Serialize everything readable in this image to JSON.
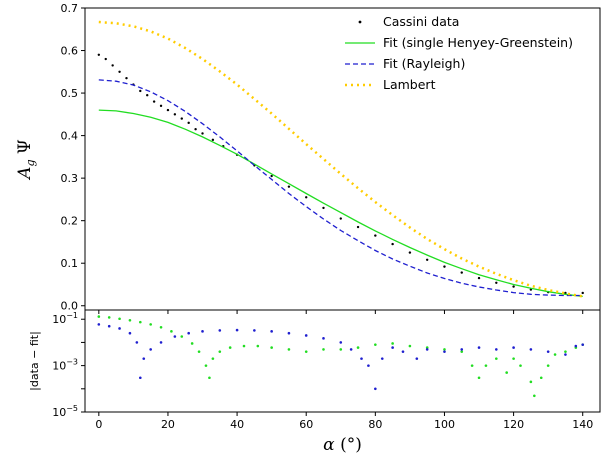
{
  "chart_data": [
    {
      "type": "line",
      "panel": "top",
      "ylabel": "A_g Ψ",
      "xlabel": "",
      "xlim": [
        -4,
        145
      ],
      "ylim": [
        -0.01,
        0.7
      ],
      "yticks": [
        0.0,
        0.1,
        0.2,
        0.3,
        0.4,
        0.5,
        0.6,
        0.7
      ],
      "ytick_labels": [
        "0.0",
        "0.1",
        "0.2",
        "0.3",
        "0.4",
        "0.5",
        "0.6",
        "0.7"
      ],
      "legend": "top-right",
      "grid": false,
      "series": [
        {
          "name": "Cassini data",
          "style": "dots",
          "color": "#000000",
          "x": [
            0,
            2,
            4,
            6,
            8,
            10,
            12,
            14,
            16,
            18,
            20,
            22,
            24,
            26,
            28,
            30,
            33,
            36,
            40,
            45,
            50,
            55,
            60,
            65,
            70,
            75,
            80,
            85,
            90,
            95,
            100,
            105,
            110,
            115,
            120,
            125,
            130,
            135,
            140
          ],
          "y": [
            0.59,
            0.58,
            0.565,
            0.55,
            0.535,
            0.52,
            0.505,
            0.495,
            0.48,
            0.47,
            0.46,
            0.45,
            0.44,
            0.43,
            0.415,
            0.405,
            0.39,
            0.375,
            0.355,
            0.33,
            0.305,
            0.28,
            0.255,
            0.23,
            0.205,
            0.185,
            0.165,
            0.145,
            0.125,
            0.108,
            0.092,
            0.078,
            0.065,
            0.054,
            0.045,
            0.038,
            0.032,
            0.03,
            0.03
          ]
        },
        {
          "name": "Fit (single Henyey-Greenstein)",
          "style": "solid",
          "color": "#22dd22",
          "x": [
            0,
            5,
            10,
            15,
            20,
            25,
            30,
            35,
            40,
            45,
            50,
            55,
            60,
            65,
            70,
            75,
            80,
            85,
            90,
            95,
            100,
            105,
            110,
            115,
            120,
            125,
            130,
            135,
            140
          ],
          "y": [
            0.46,
            0.458,
            0.452,
            0.443,
            0.431,
            0.415,
            0.397,
            0.377,
            0.356,
            0.333,
            0.31,
            0.287,
            0.264,
            0.241,
            0.219,
            0.197,
            0.176,
            0.156,
            0.137,
            0.119,
            0.102,
            0.087,
            0.073,
            0.061,
            0.05,
            0.041,
            0.033,
            0.027,
            0.022
          ]
        },
        {
          "name": "Fit (Rayleigh)",
          "style": "dashed",
          "color": "#1f1fcf",
          "x": [
            0,
            5,
            10,
            15,
            20,
            25,
            30,
            35,
            40,
            45,
            50,
            55,
            60,
            65,
            70,
            75,
            80,
            85,
            90,
            95,
            100,
            105,
            110,
            115,
            120,
            125,
            130,
            135,
            140
          ],
          "y": [
            0.531,
            0.528,
            0.519,
            0.503,
            0.482,
            0.457,
            0.428,
            0.397,
            0.364,
            0.33,
            0.297,
            0.264,
            0.233,
            0.204,
            0.177,
            0.153,
            0.13,
            0.11,
            0.093,
            0.077,
            0.064,
            0.053,
            0.044,
            0.037,
            0.031,
            0.027,
            0.025,
            0.024,
            0.024
          ]
        },
        {
          "name": "Lambert",
          "style": "dotted",
          "color": "#ffcc00",
          "x": [
            0,
            5,
            10,
            15,
            20,
            25,
            30,
            35,
            40,
            45,
            50,
            55,
            60,
            65,
            70,
            75,
            80,
            85,
            90,
            95,
            100,
            105,
            110,
            115,
            120,
            125,
            130,
            135,
            140
          ],
          "y": [
            0.667,
            0.664,
            0.657,
            0.645,
            0.628,
            0.606,
            0.58,
            0.551,
            0.52,
            0.486,
            0.452,
            0.416,
            0.38,
            0.345,
            0.31,
            0.276,
            0.244,
            0.213,
            0.184,
            0.157,
            0.133,
            0.111,
            0.092,
            0.075,
            0.06,
            0.047,
            0.037,
            0.029,
            0.022
          ]
        }
      ]
    },
    {
      "type": "scatter",
      "panel": "bottom",
      "ylabel": "|data − fit|",
      "xlabel": "α (°)",
      "xlim": [
        -4,
        145
      ],
      "ylog": true,
      "ylim": [
        1e-05,
        0.25
      ],
      "xticks": [
        0,
        20,
        40,
        60,
        80,
        100,
        120,
        140
      ],
      "xtick_labels": [
        "0",
        "20",
        "40",
        "60",
        "80",
        "100",
        "120",
        "140"
      ],
      "ytick_mantissa": "10",
      "ytick_exponents": [
        "−1",
        "−3",
        "−5"
      ],
      "ytick_values": [
        0.1,
        0.001,
        1e-05
      ],
      "series": [
        {
          "fit": "Fit (single Henyey-Greenstein)",
          "color": "#22dd22",
          "x": [
            0,
            3,
            6,
            9,
            12,
            15,
            18,
            21,
            24,
            27,
            29,
            31,
            32,
            33,
            35,
            38,
            42,
            46,
            50,
            55,
            60,
            65,
            70,
            75,
            80,
            85,
            90,
            95,
            100,
            105,
            108,
            110,
            112,
            115,
            118,
            120,
            122,
            125,
            126,
            128,
            130,
            132,
            135,
            138,
            140
          ],
          "y": [
            0.13,
            0.12,
            0.105,
            0.09,
            0.075,
            0.06,
            0.045,
            0.03,
            0.018,
            0.009,
            0.004,
            0.001,
            0.0003,
            0.002,
            0.004,
            0.006,
            0.007,
            0.007,
            0.006,
            0.005,
            0.004,
            0.005,
            0.005,
            0.006,
            0.008,
            0.009,
            0.007,
            0.006,
            0.005,
            0.004,
            0.001,
            0.0003,
            0.001,
            0.002,
            0.0005,
            0.002,
            0.001,
            0.0002,
            5e-05,
            0.0003,
            0.001,
            0.003,
            0.004,
            0.006,
            0.008
          ]
        },
        {
          "fit": "Fit (Rayleigh)",
          "color": "#1f1fcf",
          "x": [
            0,
            3,
            6,
            9,
            11,
            12,
            13,
            15,
            18,
            22,
            26,
            30,
            35,
            40,
            45,
            50,
            55,
            60,
            65,
            70,
            73,
            76,
            78,
            80,
            82,
            85,
            88,
            92,
            95,
            100,
            105,
            110,
            115,
            120,
            125,
            130,
            135,
            138,
            140
          ],
          "y": [
            0.06,
            0.05,
            0.04,
            0.025,
            0.01,
            0.0003,
            0.002,
            0.005,
            0.01,
            0.018,
            0.025,
            0.03,
            0.033,
            0.034,
            0.033,
            0.03,
            0.025,
            0.02,
            0.015,
            0.01,
            0.005,
            0.002,
            0.001,
            0.0001,
            0.002,
            0.006,
            0.004,
            0.002,
            0.005,
            0.004,
            0.005,
            0.006,
            0.005,
            0.006,
            0.005,
            0.004,
            0.003,
            0.007,
            0.008
          ]
        }
      ]
    }
  ]
}
